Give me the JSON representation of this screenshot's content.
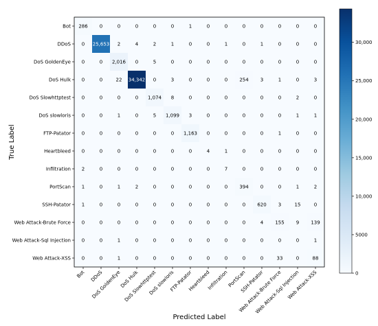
{
  "chart_data": {
    "type": "heatmap",
    "xlabel": "Predicted Label",
    "ylabel": "True Label",
    "categories": [
      "Bot",
      "DDoS",
      "DoS GoldenEye",
      "DoS Hulk",
      "DoS Slowhttptest",
      "DoS slowloris",
      "FTP-Patator",
      "Heartbleed",
      "Infiltration",
      "PortScan",
      "SSH-Patator",
      "Web Attack-Brute Force",
      "Web Attack-Sql Injection",
      "Web Attack-XSS"
    ],
    "matrix": [
      [
        286,
        0,
        0,
        0,
        0,
        0,
        1,
        0,
        0,
        0,
        0,
        0,
        0,
        0
      ],
      [
        0,
        25653,
        2,
        4,
        2,
        1,
        0,
        0,
        1,
        0,
        1,
        0,
        0,
        0
      ],
      [
        0,
        0,
        2016,
        0,
        5,
        0,
        0,
        0,
        0,
        0,
        0,
        0,
        0,
        0
      ],
      [
        0,
        0,
        22,
        34342,
        0,
        3,
        0,
        0,
        0,
        254,
        3,
        1,
        0,
        3
      ],
      [
        0,
        0,
        0,
        0,
        1074,
        8,
        0,
        0,
        0,
        0,
        0,
        0,
        2,
        0
      ],
      [
        0,
        0,
        1,
        0,
        5,
        1099,
        3,
        0,
        0,
        0,
        0,
        0,
        1,
        1
      ],
      [
        0,
        0,
        0,
        0,
        0,
        0,
        1163,
        0,
        0,
        0,
        0,
        1,
        0,
        0
      ],
      [
        0,
        0,
        0,
        0,
        0,
        0,
        0,
        4,
        1,
        0,
        0,
        0,
        0,
        0
      ],
      [
        2,
        0,
        0,
        0,
        0,
        0,
        0,
        0,
        7,
        0,
        0,
        0,
        0,
        0
      ],
      [
        1,
        0,
        1,
        2,
        0,
        0,
        0,
        0,
        0,
        394,
        0,
        0,
        1,
        2
      ],
      [
        1,
        0,
        0,
        0,
        0,
        0,
        0,
        0,
        0,
        0,
        620,
        3,
        15,
        0
      ],
      [
        0,
        0,
        0,
        0,
        0,
        0,
        0,
        0,
        0,
        0,
        4,
        155,
        9,
        139
      ],
      [
        0,
        0,
        1,
        0,
        0,
        0,
        0,
        0,
        0,
        0,
        0,
        0,
        0,
        1
      ],
      [
        0,
        0,
        1,
        0,
        0,
        0,
        0,
        0,
        0,
        0,
        0,
        33,
        0,
        88
      ]
    ],
    "colormap": "Blues",
    "vmin": 0,
    "vmax": 34342,
    "colorbar_ticks": [
      0,
      5000,
      10000,
      15000,
      20000,
      25000,
      30000
    ],
    "colorbar_tick_labels": [
      "0",
      "5000",
      "10,000",
      "15,000",
      "20,000",
      "25,000",
      "30,000"
    ],
    "threshold_for_white_text": 17171,
    "colors": {
      "low": "#f7fbff",
      "high": "#08306b"
    }
  }
}
